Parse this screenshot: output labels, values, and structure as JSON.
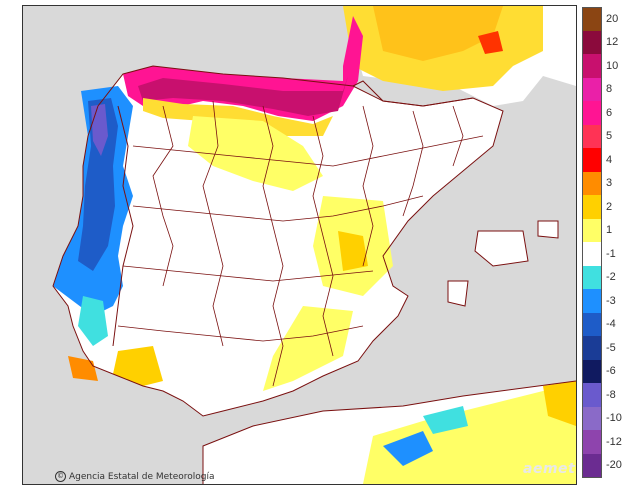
{
  "map": {
    "credit": "Agencia Estatal de Meteorología",
    "credit_symbol": "©",
    "logo_text": "aemet"
  },
  "legend": {
    "entries": [
      {
        "label": "20",
        "color": "#8b4513"
      },
      {
        "label": "12",
        "color": "#8b0a3c"
      },
      {
        "label": "10",
        "color": "#c8106e"
      },
      {
        "label": "8",
        "color": "#ea20a8"
      },
      {
        "label": "6",
        "color": "#ff1493"
      },
      {
        "label": "5",
        "color": "#ff3355"
      },
      {
        "label": "4",
        "color": "#ff0000"
      },
      {
        "label": "3",
        "color": "#ff8c00"
      },
      {
        "label": "2",
        "color": "#ffd000"
      },
      {
        "label": "1",
        "color": "#ffff66"
      },
      {
        "label": "-1",
        "color": "#ffffff"
      },
      {
        "label": "-2",
        "color": "#40e0e0"
      },
      {
        "label": "-3",
        "color": "#1e90ff"
      },
      {
        "label": "-4",
        "color": "#1e5cc8"
      },
      {
        "label": "-5",
        "color": "#1a3c96"
      },
      {
        "label": "-6",
        "color": "#101a60"
      },
      {
        "label": "-8",
        "color": "#6a5acd"
      },
      {
        "label": "-10",
        "color": "#8a6ac8"
      },
      {
        "label": "-12",
        "color": "#8e44ad"
      },
      {
        "label": "-20",
        "color": "#6b2c91"
      }
    ]
  },
  "colors": {
    "sea": "#d9d9d9",
    "land": "#ffffff",
    "border": "#7a1010"
  }
}
